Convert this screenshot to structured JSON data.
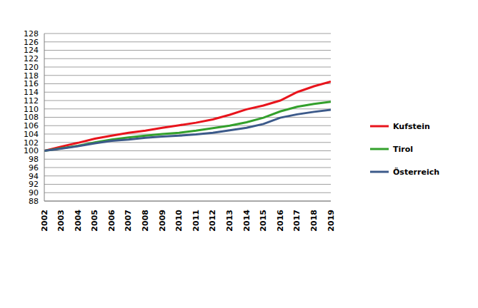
{
  "chart_data": {
    "type": "line",
    "x": [
      2002,
      2003,
      2004,
      2005,
      2006,
      2007,
      2008,
      2009,
      2010,
      2011,
      2012,
      2013,
      2014,
      2015,
      2016,
      2017,
      2018,
      2019
    ],
    "xlim": [
      2002,
      2019
    ],
    "xticks": [
      2002,
      2003,
      2004,
      2005,
      2006,
      2007,
      2008,
      2009,
      2010,
      2011,
      2012,
      2013,
      2014,
      2015,
      2016,
      2017,
      2018,
      2019
    ],
    "ylim": [
      88,
      128
    ],
    "yticks": [
      88,
      90,
      92,
      94,
      96,
      98,
      100,
      102,
      104,
      106,
      108,
      110,
      112,
      114,
      116,
      118,
      120,
      122,
      124,
      126,
      128
    ],
    "grid": true,
    "legend": "right",
    "series": [
      {
        "name": "Kufstein",
        "color": "#e8141c",
        "values": [
          100,
          101,
          101.9,
          102.9,
          103.6,
          104.3,
          104.8,
          105.5,
          106.1,
          106.7,
          107.5,
          108.6,
          109.9,
          110.8,
          112.0,
          114.0,
          115.4,
          116.5
        ]
      },
      {
        "name": "Tirol",
        "color": "#33a02c",
        "values": [
          100,
          100.6,
          101.2,
          102.0,
          102.7,
          103.2,
          103.6,
          104.0,
          104.3,
          104.8,
          105.4,
          106.0,
          106.8,
          107.9,
          109.4,
          110.5,
          111.2,
          111.7
        ]
      },
      {
        "name": "Österreich",
        "color": "#3c5a8a",
        "values": [
          100,
          100.5,
          101.1,
          101.8,
          102.4,
          102.7,
          103.1,
          103.4,
          103.6,
          103.9,
          104.3,
          104.9,
          105.5,
          106.4,
          107.9,
          108.7,
          109.3,
          109.8
        ]
      }
    ]
  }
}
